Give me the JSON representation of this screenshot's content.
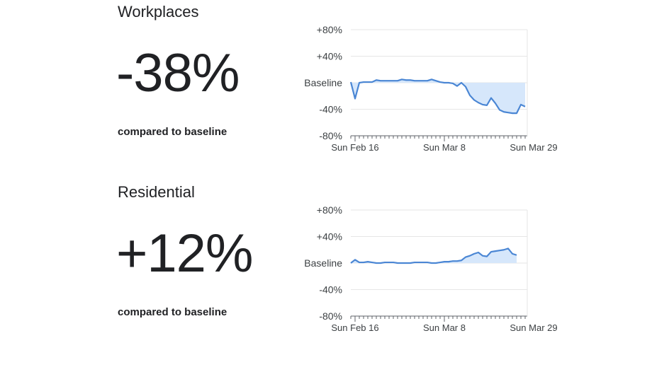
{
  "sections": [
    {
      "title": "Workplaces",
      "value": "-38%",
      "caption": "compared to baseline"
    },
    {
      "title": "Residential",
      "value": "+12%",
      "caption": "compared to baseline"
    }
  ],
  "colors": {
    "line": "#4a86d4",
    "fill": "#d6e7fb",
    "grid": "#e6e6e6",
    "axis": "#5f6368"
  },
  "chart_data": [
    {
      "type": "area",
      "y_tick_labels": [
        "+80%",
        "+40%",
        "Baseline",
        "-40%",
        "-80%"
      ],
      "y_tick_values": [
        80,
        40,
        0,
        -40,
        -80
      ],
      "ylim": [
        -80,
        80
      ],
      "x_tick_labels": [
        "Sun Feb 16",
        "Sun Mar 8",
        "Sun Mar 29"
      ],
      "x_tick_indices": [
        1,
        22,
        43
      ],
      "values": [
        1,
        -24,
        0,
        1,
        1,
        1,
        4,
        3,
        3,
        3,
        3,
        3,
        5,
        4,
        4,
        3,
        3,
        3,
        3,
        5,
        3,
        1,
        0,
        0,
        -1,
        -5,
        0,
        -6,
        -19,
        -26,
        -30,
        -33,
        -34,
        -23,
        -31,
        -41,
        -44,
        -45,
        -46,
        -46,
        -33,
        -36
      ]
    },
    {
      "type": "area",
      "y_tick_labels": [
        "+80%",
        "+40%",
        "Baseline",
        "-40%",
        "-80%"
      ],
      "y_tick_values": [
        80,
        40,
        0,
        -40,
        -80
      ],
      "ylim": [
        -80,
        80
      ],
      "x_tick_labels": [
        "Sun Feb 16",
        "Sun Mar 8",
        "Sun Mar 29"
      ],
      "x_tick_indices": [
        1,
        22,
        43
      ],
      "values": [
        0,
        5,
        1,
        1,
        2,
        1,
        0,
        0,
        1,
        1,
        1,
        0,
        0,
        0,
        0,
        1,
        1,
        1,
        1,
        0,
        0,
        1,
        2,
        2,
        3,
        3,
        4,
        9,
        11,
        14,
        16,
        11,
        10,
        17,
        18,
        19,
        20,
        22,
        14,
        12
      ]
    }
  ]
}
